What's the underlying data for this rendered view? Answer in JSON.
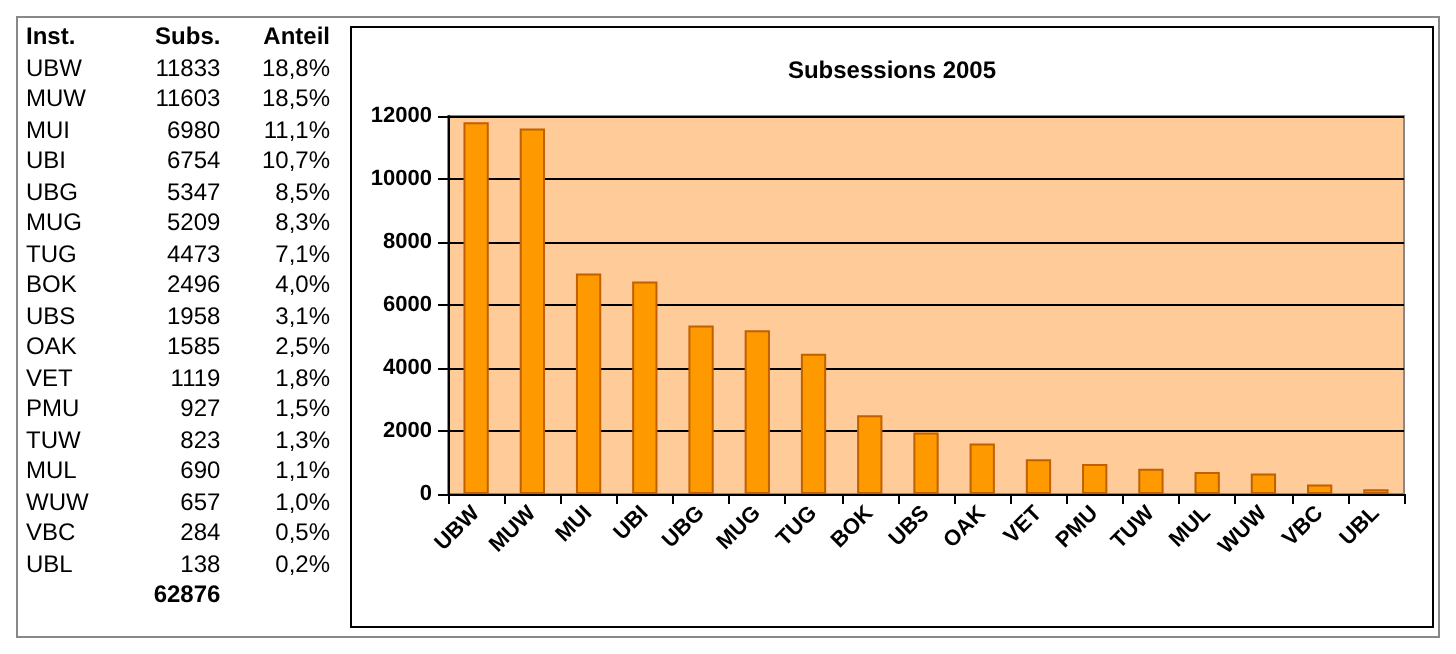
{
  "chart_data": [
    {
      "type": "other",
      "annotations": [
        "Inst.",
        "Subs.",
        "Anteil",
        "UBW",
        "11833",
        "18,8%",
        "MUW",
        "11603",
        "18,5%",
        "MUI",
        "6980",
        "11,1%",
        "UBI",
        "6754",
        "10,7%",
        "UBG",
        "5347",
        "8,5%",
        "MUG",
        "5209",
        "8,3%",
        "TUG",
        "4473",
        "7,1%",
        "BOK",
        "2496",
        "4,0%",
        "UBS",
        "1958",
        "3,1%",
        "OAK",
        "1585",
        "2,5%",
        "VET",
        "1119",
        "1,8%",
        "PMU",
        "927",
        "1,5%",
        "TUW",
        "823",
        "1,3%",
        "MUL",
        "690",
        "1,1%",
        "WUW",
        "657",
        "1,0%",
        "VBC",
        "284",
        "0,5%",
        "UBL",
        "138",
        "0,2%",
        "62876"
      ]
    },
    {
      "type": "bar",
      "title": "Subsessions 2005",
      "categories": [
        "UBW",
        "MUW",
        "MUI",
        "UBI",
        "UBG",
        "MUG",
        "TUG",
        "BOK",
        "UBS",
        "OAK",
        "VET",
        "PMU",
        "TUW",
        "MUL",
        "WUW",
        "VBC",
        "UBL"
      ],
      "values": [
        11800,
        11600,
        7000,
        6750,
        5350,
        5200,
        4450,
        2500,
        1950,
        1600,
        1100,
        950,
        800,
        700,
        650,
        300,
        150
      ],
      "color": "#ff9900",
      "ylim": [
        0,
        12000
      ],
      "yticks": [
        0,
        2000,
        4000,
        6000,
        8000,
        10000,
        12000
      ],
      "grid": "y"
    }
  ]
}
